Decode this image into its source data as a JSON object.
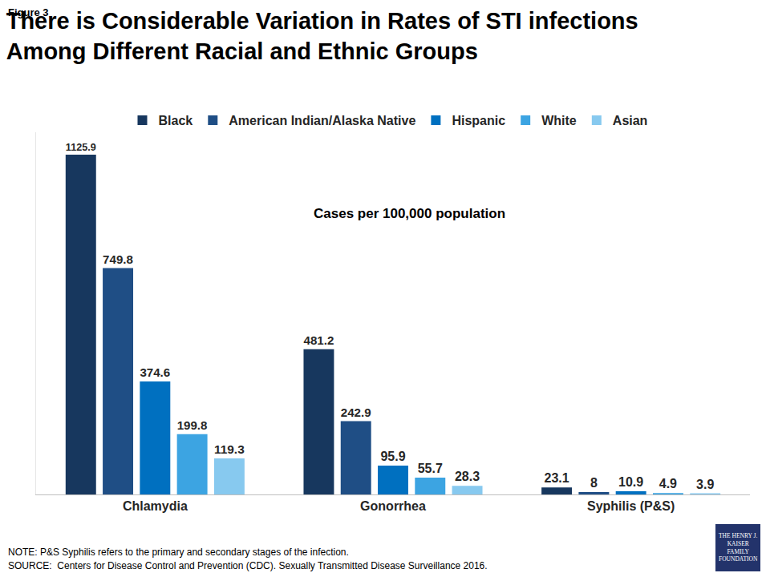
{
  "chart_data": {
    "type": "bar",
    "label": "Figure 3",
    "title": [
      "There is Considerable Variation in Rates of STI infections",
      "Among Different Racial and Ethnic Groups"
    ],
    "annotation": "Cases per 100,000 population",
    "categories": [
      "Chlamydia",
      "Gonorrhea",
      "Syphilis (P&S)"
    ],
    "series": [
      {
        "name": "Black",
        "color": "#17375e",
        "values": [
          1125.9,
          481.2,
          23.1
        ]
      },
      {
        "name": "American Indian/Alaska Native",
        "color": "#1f4e85",
        "values": [
          749.8,
          242.9,
          8
        ]
      },
      {
        "name": "Hispanic",
        "color": "#0070c0",
        "values": [
          374.6,
          95.9,
          10.9
        ]
      },
      {
        "name": "White",
        "color": "#3ca4e2",
        "values": [
          199.8,
          55.7,
          4.9
        ]
      },
      {
        "name": "Asian",
        "color": "#87c9ef",
        "values": [
          119.3,
          28.3,
          3.9
        ]
      }
    ],
    "ylim": [
      0,
      1200
    ],
    "grid": false,
    "legend": "top",
    "data_labels": true,
    "tick_labels": "x",
    "notes": [
      "NOTE: P&S Syphilis refers to the primary and secondary stages of the infection.",
      "SOURCE:  Centers for Disease Control and Prevention (CDC). Sexually Transmitted Disease Surveillance 2016."
    ],
    "logo": [
      "THE HENRY J.",
      "KAISER",
      "FAMILY",
      "FOUNDATION"
    ]
  }
}
